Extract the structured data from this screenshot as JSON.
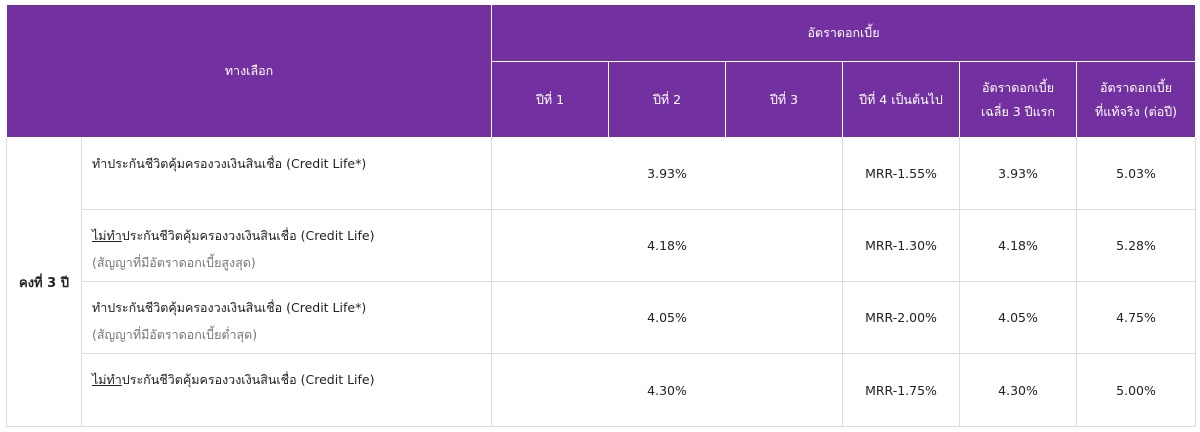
{
  "header": {
    "option_label": "ทางเลือก",
    "interest_group_label": "อัตราดอกเบี้ย",
    "col_year1": "ปีที่ 1",
    "col_year2": "ปีที่ 2",
    "col_year3": "ปีที่ 3",
    "col_year4": "ปีที่ 4 เป็นต้นไป",
    "col_avg_line1": "อัตราดอกเบี้ย",
    "col_avg_line2": "เฉลี่ย 3 ปีแรก",
    "col_eff_line1": "อัตราดอกเบี้ย",
    "col_eff_line2": "ที่แท้จริง (ต่อปี)"
  },
  "term_label": "คงที่ 3 ปี",
  "rows": [
    {
      "option_prefix": "",
      "option_main": "ทำประกันชีวิตคุ้มครองวงเงินสินเชื่อ (Credit Life*)",
      "option_note": "",
      "fixed_rate": "3.93%",
      "year4": "MRR-1.55%",
      "avg3": "3.93%",
      "effective": "5.03%"
    },
    {
      "option_prefix": "ไม่ทำ",
      "option_main": "ประกันชีวิตคุ้มครองวงเงินสินเชื่อ (Credit Life)",
      "option_note": "(สัญญาที่มีอัตราดอกเบี้ยสูงสุด)",
      "fixed_rate": "4.18%",
      "year4": "MRR-1.30%",
      "avg3": "4.18%",
      "effective": "5.28%"
    },
    {
      "option_prefix": "",
      "option_main": "ทำประกันชีวิตคุ้มครองวงเงินสินเชื่อ (Credit Life*)",
      "option_note": "(สัญญาที่มีอัตราดอกเบี้ยต่ำสุด)",
      "fixed_rate": "4.05%",
      "year4": "MRR-2.00%",
      "avg3": "4.05%",
      "effective": "4.75%"
    },
    {
      "option_prefix": "ไม่ทำ",
      "option_main": "ประกันชีวิตคุ้มครองวงเงินสินเชื่อ (Credit Life)",
      "option_note": "",
      "fixed_rate": "4.30%",
      "year4": "MRR-1.75%",
      "avg3": "4.30%",
      "effective": "5.00%"
    }
  ],
  "colors": {
    "header_bg": "#7230a0",
    "header_text": "#ffffff",
    "border": "#dcdcdc",
    "note_text": "#777777"
  }
}
